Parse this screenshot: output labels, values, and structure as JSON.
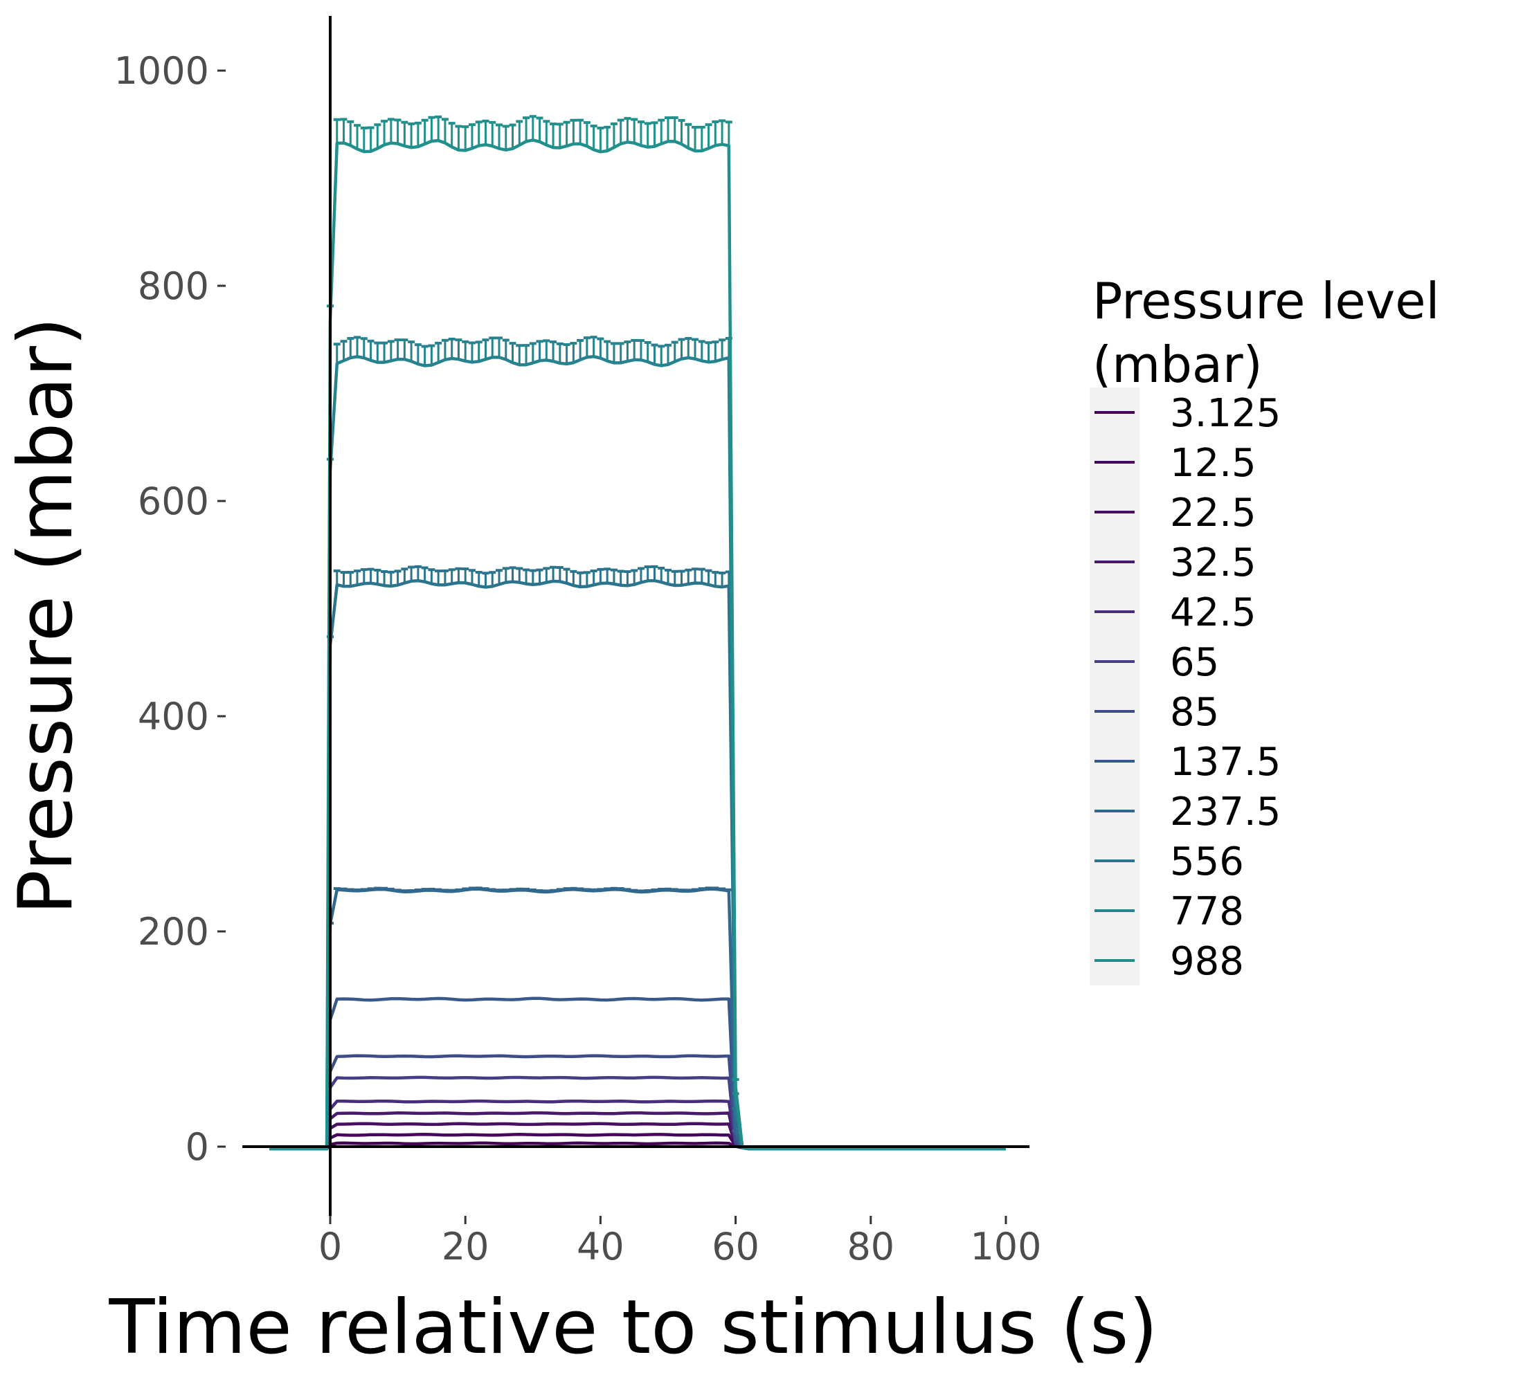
{
  "chart_data": {
    "type": "line",
    "title": "",
    "xlabel": "Time relative to stimulus (s)",
    "ylabel": "Pressure (mbar)",
    "xlim": [
      -14,
      106
    ],
    "ylim": [
      -70,
      1050
    ],
    "xticks": [
      0,
      20,
      40,
      60,
      80,
      100
    ],
    "xtick_labels": [
      "0",
      "20",
      "40",
      "60",
      "80",
      "100"
    ],
    "yticks": [
      0,
      200,
      400,
      600,
      800,
      1000
    ],
    "ytick_labels": [
      "0",
      "200",
      "400",
      "600",
      "800",
      "1000"
    ],
    "grid": false,
    "reference_lines": {
      "horizontal_at_y": 0,
      "vertical_at_x": 0
    },
    "error_bars": "upper error bar at every 1 s sample (visible on 556, 778, 988 series)",
    "time_profile": {
      "baseline_start": -9,
      "onset": 0,
      "first_rise_sample": 0,
      "plateau_start": 1,
      "plateau_end": 59,
      "offset_sample": 60,
      "end": 100
    },
    "legend": {
      "title": "Pressure level\n(mbar)",
      "title_lines": [
        "Pressure level",
        "(mbar)"
      ],
      "position": "right"
    },
    "series": [
      {
        "name": "3.125",
        "color": "#440154",
        "baseline": -2,
        "onset_value": 2,
        "plateau": 3,
        "error": 0,
        "post": -2
      },
      {
        "name": "12.5",
        "color": "#46085C",
        "baseline": -2,
        "onset_value": 8,
        "plateau": 11,
        "error": 0,
        "post": -2
      },
      {
        "name": "22.5",
        "color": "#471063",
        "baseline": -2,
        "onset_value": 17,
        "plateau": 21,
        "error": 0,
        "post": -2
      },
      {
        "name": "32.5",
        "color": "#481A6C",
        "baseline": -2,
        "onset_value": 26,
        "plateau": 31,
        "error": 0,
        "post": -2
      },
      {
        "name": "42.5",
        "color": "#472D7B",
        "baseline": -2,
        "onset_value": 35,
        "plateau": 42,
        "error": 0,
        "post": -2
      },
      {
        "name": "65",
        "color": "#433E85",
        "baseline": -2,
        "onset_value": 55,
        "plateau": 64,
        "error": 0,
        "post": -2
      },
      {
        "name": "85",
        "color": "#3D4D8A",
        "baseline": -2,
        "onset_value": 70,
        "plateau": 84,
        "error": 0,
        "post": -2
      },
      {
        "name": "137.5",
        "color": "#38598C",
        "baseline": -2,
        "onset_value": 118,
        "plateau": 137,
        "error": 0,
        "post": -2
      },
      {
        "name": "237.5",
        "color": "#31688E",
        "baseline": -2,
        "onset_value": 207,
        "plateau": 238,
        "error": 1,
        "post": -2
      },
      {
        "name": "556",
        "color": "#2B748E",
        "baseline": -2,
        "onset_value": 466,
        "plateau": 523,
        "error": 13,
        "post": -2
      },
      {
        "name": "778",
        "color": "#26828E",
        "baseline": -2,
        "onset_value": 628,
        "plateau": 730,
        "error": 18,
        "post": -2
      },
      {
        "name": "988",
        "color": "#21908D",
        "baseline": -2,
        "onset_value": 768,
        "plateau": 930,
        "error": 22,
        "post": -2
      }
    ]
  }
}
